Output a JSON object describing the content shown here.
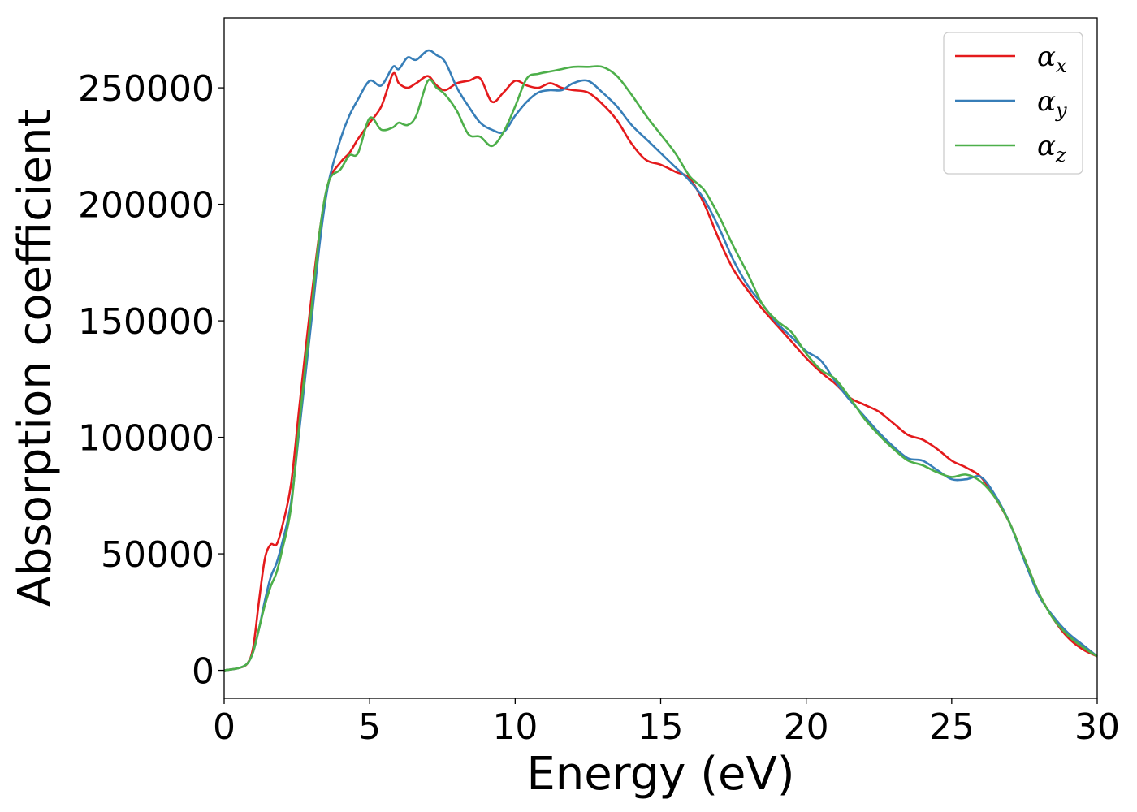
{
  "chart_data": {
    "type": "line",
    "xlabel": "Energy (eV)",
    "ylabel": "Absorption coefficient",
    "xlim": [
      0,
      30
    ],
    "ylim": [
      -12000,
      280000
    ],
    "xticks": [
      0,
      5,
      10,
      15,
      20,
      25,
      30
    ],
    "xtick_labels": [
      "0",
      "5",
      "10",
      "15",
      "20",
      "25",
      "30"
    ],
    "yticks": [
      0,
      50000,
      100000,
      150000,
      200000,
      250000
    ],
    "ytick_labels": [
      "0",
      "50000",
      "100000",
      "150000",
      "200000",
      "250000"
    ],
    "grid": false,
    "legend_position": "top-right",
    "series": [
      {
        "name": "α",
        "name_sub": "x",
        "color": "#e41a1c",
        "x": [
          0,
          0.5,
          0.8,
          1.0,
          1.2,
          1.4,
          1.6,
          1.8,
          2.0,
          2.3,
          2.6,
          3.0,
          3.3,
          3.6,
          4.0,
          4.3,
          4.6,
          5.0,
          5.4,
          5.8,
          6.0,
          6.3,
          6.6,
          7.0,
          7.3,
          7.6,
          8.0,
          8.4,
          8.8,
          9.2,
          9.6,
          10.0,
          10.4,
          10.8,
          11.2,
          11.6,
          12.0,
          12.5,
          13.0,
          13.5,
          14.0,
          14.5,
          15.0,
          15.5,
          16.0,
          16.5,
          17.0,
          17.5,
          18.0,
          18.5,
          19.0,
          19.5,
          20.0,
          20.5,
          21.0,
          21.5,
          22.0,
          22.5,
          23.0,
          23.5,
          24.0,
          24.5,
          25.0,
          25.5,
          26.0,
          26.5,
          27.0,
          27.5,
          28.0,
          28.5,
          29.0,
          29.5,
          30.0
        ],
        "y": [
          0,
          1000,
          3000,
          10000,
          30000,
          48000,
          54000,
          54000,
          62000,
          80000,
          115000,
          160000,
          190000,
          210000,
          218000,
          222000,
          228000,
          235000,
          242000,
          256000,
          252000,
          250000,
          252000,
          255000,
          251000,
          249000,
          252000,
          253000,
          254000,
          244000,
          248000,
          253000,
          251000,
          250000,
          252000,
          250000,
          249000,
          248000,
          243000,
          236000,
          226000,
          219000,
          217000,
          214000,
          211000,
          200000,
          185000,
          172000,
          163000,
          155000,
          148000,
          141000,
          134000,
          128000,
          123000,
          117000,
          114000,
          111000,
          106000,
          101000,
          99000,
          95000,
          90000,
          87000,
          83000,
          74000,
          63000,
          48000,
          33000,
          22000,
          14000,
          9000,
          6000
        ]
      },
      {
        "name": "α",
        "name_sub": "y",
        "color": "#377eb8",
        "x": [
          0,
          0.5,
          0.8,
          1.0,
          1.2,
          1.4,
          1.6,
          1.8,
          2.0,
          2.3,
          2.6,
          3.0,
          3.3,
          3.6,
          4.0,
          4.3,
          4.6,
          5.0,
          5.4,
          5.8,
          6.0,
          6.3,
          6.6,
          7.0,
          7.3,
          7.6,
          8.0,
          8.4,
          8.8,
          9.2,
          9.6,
          10.0,
          10.4,
          10.8,
          11.2,
          11.6,
          12.0,
          12.5,
          13.0,
          13.5,
          14.0,
          14.5,
          15.0,
          15.5,
          16.0,
          16.5,
          17.0,
          17.5,
          18.0,
          18.5,
          19.0,
          19.5,
          20.0,
          20.5,
          21.0,
          21.5,
          22.0,
          22.5,
          23.0,
          23.5,
          24.0,
          24.5,
          25.0,
          25.5,
          26.0,
          26.5,
          27.0,
          27.5,
          28.0,
          28.5,
          29.0,
          29.5,
          30.0
        ],
        "y": [
          0,
          1000,
          3000,
          8000,
          18000,
          30000,
          40000,
          46000,
          55000,
          72000,
          105000,
          150000,
          185000,
          210000,
          228000,
          238000,
          245000,
          253000,
          251000,
          259000,
          258000,
          263000,
          262000,
          266000,
          264000,
          261000,
          250000,
          242000,
          235000,
          232000,
          231000,
          238000,
          244000,
          248000,
          249000,
          249000,
          252000,
          253000,
          248000,
          242000,
          234000,
          228000,
          222000,
          216000,
          210000,
          202000,
          190000,
          176000,
          165000,
          157000,
          149000,
          143000,
          137000,
          133000,
          124000,
          116000,
          109000,
          102000,
          96000,
          91000,
          90000,
          86000,
          82000,
          82000,
          83000,
          75000,
          63000,
          47000,
          32000,
          23000,
          16000,
          11000,
          6000
        ]
      },
      {
        "name": "α",
        "name_sub": "z",
        "color": "#4daf4a",
        "x": [
          0,
          0.5,
          0.8,
          1.0,
          1.2,
          1.4,
          1.6,
          1.8,
          2.0,
          2.3,
          2.6,
          3.0,
          3.3,
          3.6,
          4.0,
          4.3,
          4.6,
          5.0,
          5.4,
          5.8,
          6.0,
          6.3,
          6.6,
          7.0,
          7.3,
          7.6,
          8.0,
          8.4,
          8.8,
          9.2,
          9.6,
          10.0,
          10.4,
          10.8,
          11.2,
          11.6,
          12.0,
          12.5,
          13.0,
          13.5,
          14.0,
          14.5,
          15.0,
          15.5,
          16.0,
          16.5,
          17.0,
          17.5,
          18.0,
          18.5,
          19.0,
          19.5,
          20.0,
          20.5,
          21.0,
          21.5,
          22.0,
          22.5,
          23.0,
          23.5,
          24.0,
          24.5,
          25.0,
          25.5,
          26.0,
          26.5,
          27.0,
          27.5,
          28.0,
          28.5,
          29.0,
          29.5,
          30.0
        ],
        "y": [
          0,
          1000,
          3000,
          8000,
          18000,
          28000,
          36000,
          42000,
          52000,
          70000,
          108000,
          155000,
          190000,
          210000,
          215000,
          221000,
          222000,
          237000,
          232000,
          233000,
          235000,
          234000,
          238000,
          253000,
          250000,
          247000,
          240000,
          230000,
          229000,
          225000,
          231000,
          242000,
          254000,
          256000,
          257000,
          258000,
          259000,
          259000,
          259000,
          255000,
          247000,
          238000,
          230000,
          222000,
          212000,
          206000,
          195000,
          182000,
          170000,
          157000,
          150000,
          145000,
          136000,
          129000,
          125000,
          117000,
          108000,
          101000,
          95000,
          90000,
          88000,
          85000,
          83000,
          84000,
          81000,
          74000,
          63000,
          48000,
          33000,
          22000,
          15000,
          10000,
          6000
        ]
      }
    ]
  }
}
